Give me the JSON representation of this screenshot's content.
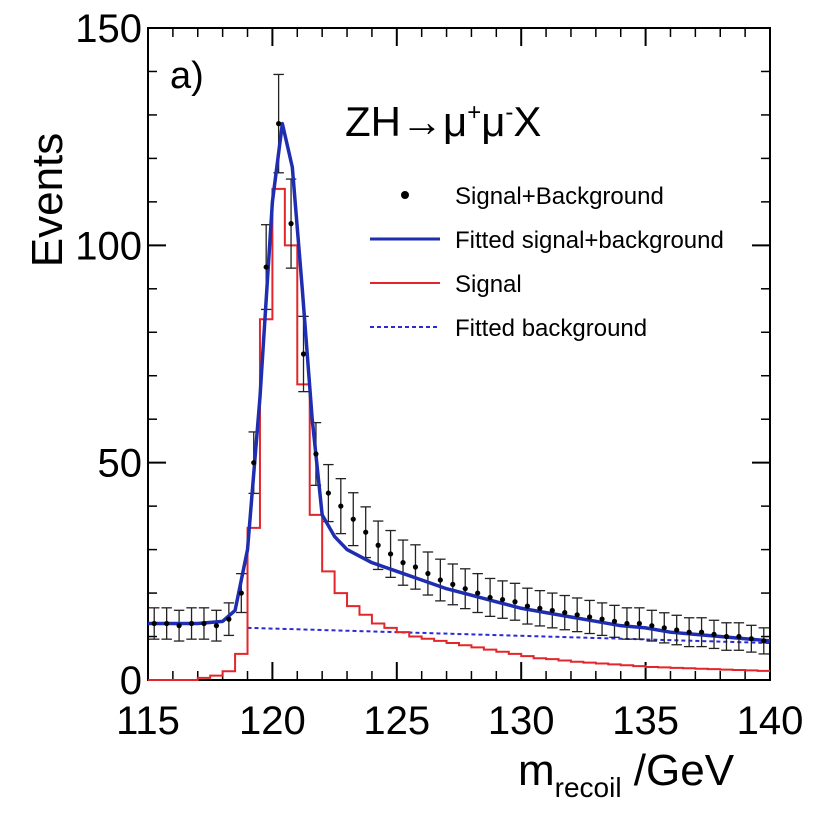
{
  "chart_data": {
    "type": "line",
    "panel_label": "a)",
    "title": "ZH→μ⁺μ⁻X",
    "title_parts": {
      "base": "ZH→μ",
      "sup1": "+",
      "mid": "μ",
      "sup2": "-",
      "tail": "X"
    },
    "xlabel": "m_recoil /GeV",
    "xlabel_parts": {
      "main": "m",
      "sub": "recoil",
      "unit": " /GeV"
    },
    "ylabel": "Events",
    "xlim": [
      115,
      140
    ],
    "ylim": [
      0,
      150
    ],
    "x_ticks": [
      115,
      120,
      125,
      130,
      135,
      140
    ],
    "x_tick_labels": [
      "115",
      "120",
      "125",
      "130",
      "135",
      "140"
    ],
    "y_ticks": [
      0,
      50,
      100,
      150
    ],
    "y_tick_labels": [
      "0",
      "50",
      "100",
      "150"
    ],
    "legend": {
      "placement": "top-right",
      "entries": [
        {
          "label": "Signal+Background",
          "style": "points",
          "color": "#000000"
        },
        {
          "label": "Fitted signal+background",
          "style": "line",
          "color": "#1f2eb0"
        },
        {
          "label": "Signal",
          "style": "step",
          "color": "#e3262b"
        },
        {
          "label": "Fitted background",
          "style": "dashed",
          "color": "#2b2bd6"
        }
      ]
    },
    "series": [
      {
        "name": "Signal+Background",
        "kind": "points_with_errors",
        "color": "#000000",
        "x": [
          115.25,
          115.75,
          116.25,
          116.75,
          117.25,
          117.75,
          118.25,
          118.75,
          119.25,
          119.75,
          120.25,
          120.75,
          121.25,
          121.75,
          122.25,
          122.75,
          123.25,
          123.75,
          124.25,
          124.75,
          125.25,
          125.75,
          126.25,
          126.75,
          127.25,
          127.75,
          128.25,
          128.75,
          129.25,
          129.75,
          130.25,
          130.75,
          131.25,
          131.75,
          132.25,
          132.75,
          133.25,
          133.75,
          134.25,
          134.75,
          135.25,
          135.75,
          136.25,
          136.75,
          137.25,
          137.75,
          138.25,
          138.75,
          139.25,
          139.75
        ],
        "y": [
          13,
          13,
          12.5,
          13,
          13,
          12.5,
          14,
          20,
          50,
          95,
          128,
          105,
          75,
          52,
          43,
          40,
          37,
          34,
          31,
          29,
          27,
          26,
          24.5,
          23,
          22,
          21,
          20,
          19,
          18.5,
          18,
          17,
          16.5,
          16,
          15.5,
          15,
          14.5,
          14,
          13.5,
          13,
          13,
          12.5,
          12,
          11.5,
          11,
          11,
          10.5,
          10,
          10,
          9.5,
          9
        ]
      },
      {
        "name": "Fitted signal+background",
        "kind": "line",
        "color": "#1f2eb0",
        "x": [
          115,
          116,
          117,
          118,
          118.5,
          119,
          119.5,
          120,
          120.4,
          120.8,
          121.2,
          121.6,
          122,
          122.5,
          123,
          124,
          125,
          126,
          127,
          128,
          129,
          130,
          131,
          132,
          133,
          134,
          135,
          136,
          137,
          138,
          139,
          140
        ],
        "y": [
          13,
          13,
          13,
          13.5,
          16,
          30,
          65,
          110,
          128,
          118,
          90,
          60,
          38,
          33,
          30,
          27,
          25,
          23,
          21,
          19.5,
          18,
          16.5,
          15.5,
          14.5,
          13.5,
          12.5,
          12,
          11,
          10.5,
          10,
          9.5,
          9
        ]
      },
      {
        "name": "Signal",
        "kind": "step",
        "color": "#e3262b",
        "x_edges": [
          115,
          115.5,
          116,
          116.5,
          117,
          117.5,
          118,
          118.5,
          119,
          119.5,
          120,
          120.5,
          121,
          121.5,
          122,
          122.5,
          123,
          123.5,
          124,
          124.5,
          125,
          125.5,
          126,
          126.5,
          127,
          127.5,
          128,
          128.5,
          129,
          129.5,
          130,
          130.5,
          131,
          131.5,
          132,
          132.5,
          133,
          133.5,
          134,
          134.5,
          135,
          135.5,
          136,
          136.5,
          137,
          137.5,
          138,
          138.5,
          139,
          139.5,
          140
        ],
        "y": [
          0,
          0,
          0,
          0,
          0.5,
          1,
          2,
          6,
          35,
          83,
          113,
          100,
          68,
          38,
          25,
          20,
          17,
          15,
          13,
          12,
          11,
          10,
          9.5,
          9,
          8.5,
          8,
          7.5,
          7,
          6.5,
          6,
          5.5,
          5,
          4.8,
          4.5,
          4.2,
          4,
          3.8,
          3.6,
          3.4,
          3.2,
          3,
          2.9,
          2.8,
          2.7,
          2.6,
          2.5,
          2.4,
          2.3,
          2.2,
          2.1
        ]
      },
      {
        "name": "Fitted background",
        "kind": "dashed",
        "color": "#2b2bd6",
        "x": [
          119,
          140
        ],
        "y": [
          12,
          8.5
        ]
      }
    ]
  }
}
